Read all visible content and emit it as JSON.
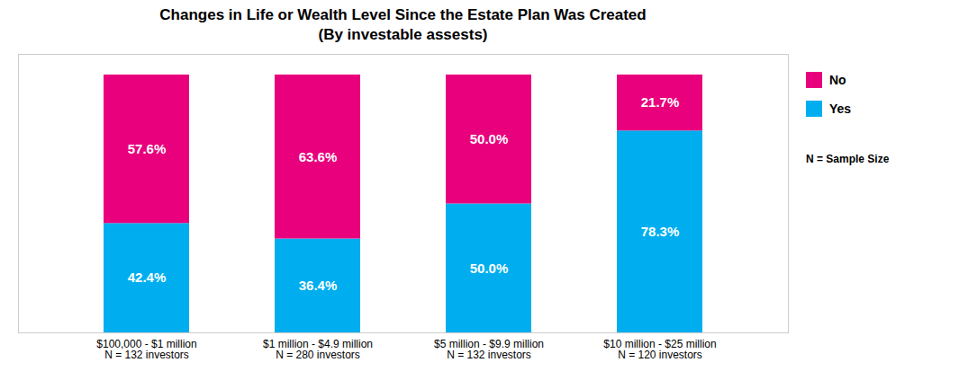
{
  "chart_data": {
    "type": "bar",
    "title": "Changes in Life or Wealth Level Since the Estate Plan Was Created",
    "subtitle": "(By investable assests)",
    "categories": [
      "$100,000 - $1 million",
      "$1 million - $4.9 million",
      "$5 million - $9.9 million",
      "$10 million - $25 million"
    ],
    "series": [
      {
        "name": "Yes",
        "color": "#00AEEF",
        "values": [
          42.4,
          36.4,
          50.0,
          78.3
        ],
        "value_labels": [
          "42.4%",
          "36.4%",
          "50.0%",
          "78.3%"
        ]
      },
      {
        "name": "No",
        "color": "#E8007D",
        "values": [
          57.6,
          63.6,
          50.0,
          21.7
        ],
        "value_labels": [
          "57.6%",
          "63.6%",
          "50.0%",
          "21.7%"
        ]
      }
    ],
    "stacked": true,
    "data_labels": true,
    "legend": "right",
    "tick_labels": "x",
    "grid": false,
    "ylim": [
      0,
      108
    ],
    "yticks": [],
    "annotations": [
      {
        "text": "N = 132 investors",
        "category": "$100,000 - $1 million"
      },
      {
        "text": "N = 280 investors",
        "category": "$1 million - $4.9 million"
      },
      {
        "text": "N = 132 investors",
        "category": "$5 million - $9.9 million"
      },
      {
        "text": "N = 120 investors",
        "category": "$10 million - $25 million"
      },
      {
        "text": "N = Sample Size"
      }
    ]
  }
}
